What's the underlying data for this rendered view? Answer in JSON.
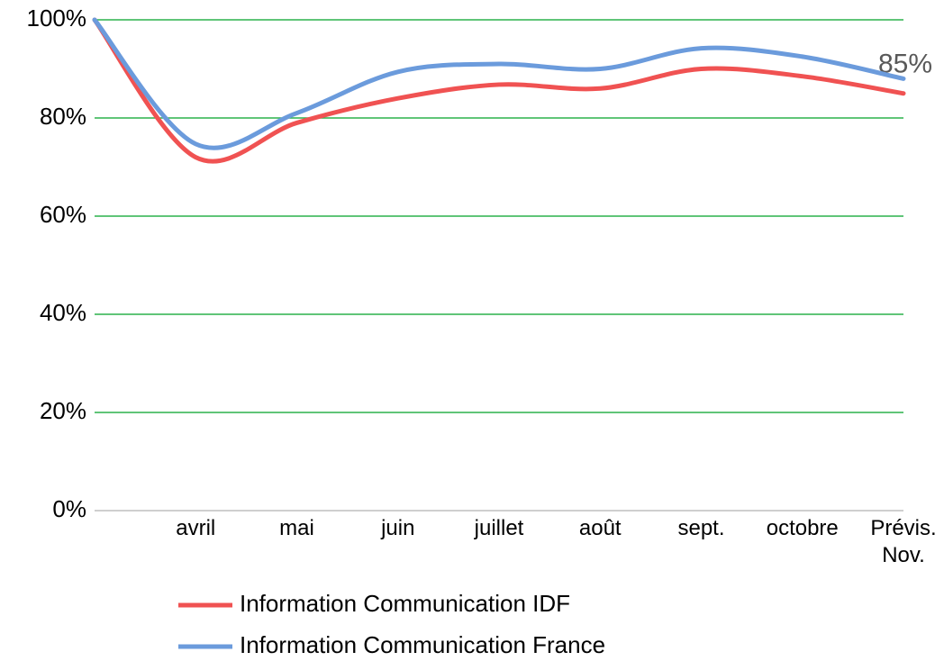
{
  "chart_data": {
    "type": "line",
    "categories": [
      null,
      "avril",
      "mai",
      "juin",
      "juillet",
      "août",
      "sept.",
      "octobre",
      "Prévis. Nov."
    ],
    "series": [
      {
        "name": "Information Communication IDF",
        "color": "#f05252",
        "values": [
          100,
          72,
          79,
          84,
          86.8,
          86,
          90,
          88.5,
          85
        ],
        "value_labels": [
          null,
          null,
          null,
          null,
          null,
          null,
          null,
          null,
          "85%"
        ]
      },
      {
        "name": "Information Communication France",
        "color": "#6b9bdc",
        "values": [
          100,
          74.7,
          81,
          89.4,
          91,
          90,
          94.2,
          92.5,
          88
        ]
      }
    ],
    "ylim": [
      0,
      100
    ],
    "yticks": [
      {
        "value": 0,
        "label": "0%"
      },
      {
        "value": 20,
        "label": "20%"
      },
      {
        "value": 40,
        "label": "40%"
      },
      {
        "value": 60,
        "label": "60%"
      },
      {
        "value": 80,
        "label": "80%"
      },
      {
        "value": 100,
        "label": "100%"
      }
    ],
    "grid": true,
    "smooth": true,
    "legend": "bottom"
  }
}
